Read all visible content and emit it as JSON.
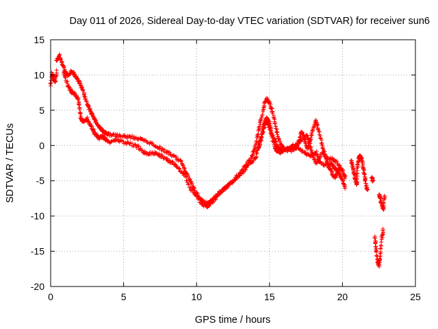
{
  "chart_data": {
    "type": "scatter",
    "title": "Day 011 of 2026, Sidereal Day-to-day VTEC variation (SDTVAR) for receiver sun6",
    "xlabel": "GPS time / hours",
    "ylabel": "SDTVAR / TECUs",
    "xlim": [
      0,
      25
    ],
    "ylim": [
      -20,
      15
    ],
    "xticks": [
      0,
      5,
      10,
      15,
      20,
      25
    ],
    "yticks": [
      -20,
      -15,
      -10,
      -5,
      0,
      5,
      10,
      15
    ],
    "grid": true,
    "marker": "+",
    "series": [
      {
        "name": "SDTVAR",
        "color": "#ff0000",
        "segments": [
          [
            [
              0.0,
              8.5
            ],
            [
              0.1,
              10.2
            ],
            [
              0.2,
              9.5
            ],
            [
              0.3,
              9.0
            ],
            [
              0.4,
              10.5
            ]
          ],
          [
            [
              0.4,
              12.0
            ],
            [
              0.6,
              12.8
            ],
            [
              0.8,
              11.5
            ],
            [
              1.0,
              10.5
            ],
            [
              1.2,
              10.0
            ],
            [
              1.4,
              10.5
            ],
            [
              1.6,
              10.2
            ],
            [
              1.8,
              9.5
            ],
            [
              2.0,
              8.8
            ],
            [
              2.2,
              8.0
            ],
            [
              2.4,
              6.5
            ],
            [
              2.6,
              5.5
            ],
            [
              2.8,
              4.5
            ],
            [
              3.0,
              3.8
            ],
            [
              3.2,
              3.0
            ],
            [
              3.4,
              2.5
            ],
            [
              3.6,
              2.0
            ],
            [
              3.8,
              1.7
            ],
            [
              4.0,
              1.6
            ],
            [
              4.5,
              1.4
            ],
            [
              5.0,
              1.3
            ],
            [
              5.5,
              1.2
            ],
            [
              6.0,
              1.0
            ],
            [
              6.5,
              0.6
            ],
            [
              7.0,
              0.2
            ],
            [
              7.5,
              -0.4
            ],
            [
              8.0,
              -1.0
            ],
            [
              8.5,
              -1.6
            ],
            [
              9.0,
              -2.5
            ],
            [
              9.3,
              -3.8
            ],
            [
              9.6,
              -5.2
            ],
            [
              9.9,
              -6.5
            ],
            [
              10.2,
              -7.5
            ],
            [
              10.5,
              -8.0
            ],
            [
              10.8,
              -8.2
            ],
            [
              11.1,
              -7.7
            ],
            [
              11.4,
              -7.0
            ],
            [
              11.8,
              -6.3
            ],
            [
              12.2,
              -5.6
            ],
            [
              12.6,
              -4.8
            ],
            [
              13.0,
              -3.8
            ],
            [
              13.4,
              -2.8
            ],
            [
              13.8,
              -1.5
            ],
            [
              14.0,
              -0.3
            ],
            [
              14.2,
              1.5
            ],
            [
              14.4,
              3.5
            ],
            [
              14.6,
              5.5
            ],
            [
              14.8,
              6.6
            ],
            [
              15.0,
              6.0
            ],
            [
              15.2,
              4.8
            ],
            [
              15.4,
              3.0
            ],
            [
              15.6,
              1.2
            ],
            [
              15.8,
              0.0
            ],
            [
              16.0,
              -0.5
            ],
            [
              16.4,
              -0.8
            ],
            [
              16.8,
              -0.5
            ],
            [
              17.0,
              0.5
            ],
            [
              17.2,
              2.0
            ],
            [
              17.4,
              1.0
            ],
            [
              17.6,
              -0.5
            ],
            [
              17.8,
              0.8
            ],
            [
              18.0,
              2.5
            ],
            [
              18.2,
              3.5
            ],
            [
              18.4,
              2.0
            ],
            [
              18.6,
              0.0
            ],
            [
              18.8,
              -1.5
            ],
            [
              19.0,
              -2.8
            ],
            [
              19.2,
              -3.5
            ],
            [
              19.4,
              -4.5
            ],
            [
              19.6,
              -4.2
            ],
            [
              19.8,
              -3.2
            ],
            [
              20.0,
              -3.6
            ],
            [
              20.2,
              -4.5
            ]
          ],
          [
            [
              0.9,
              10.5
            ],
            [
              1.1,
              9.0
            ],
            [
              1.3,
              8.0
            ],
            [
              1.5,
              7.5
            ],
            [
              1.7,
              7.2
            ],
            [
              1.9,
              6.5
            ],
            [
              2.0,
              5.0
            ],
            [
              2.1,
              3.5
            ],
            [
              2.3,
              3.5
            ],
            [
              2.5,
              3.8
            ],
            [
              2.7,
              3.0
            ],
            [
              2.9,
              2.2
            ],
            [
              3.1,
              1.5
            ],
            [
              3.3,
              1.0
            ],
            [
              3.5,
              1.3
            ],
            [
              3.7,
              1.0
            ],
            [
              4.0,
              0.5
            ],
            [
              4.5,
              0.8
            ],
            [
              5.0,
              0.5
            ],
            [
              5.5,
              0.2
            ],
            [
              6.0,
              -0.2
            ],
            [
              6.4,
              -1.0
            ],
            [
              6.8,
              -1.2
            ],
            [
              7.2,
              -1.0
            ],
            [
              7.6,
              -1.5
            ],
            [
              8.0,
              -2.0
            ],
            [
              8.4,
              -2.5
            ],
            [
              8.8,
              -3.3
            ],
            [
              9.2,
              -4.2
            ],
            [
              9.6,
              -6.2
            ],
            [
              10.0,
              -7.2
            ],
            [
              10.4,
              -8.4
            ],
            [
              10.8,
              -8.6
            ],
            [
              11.2,
              -7.8
            ],
            [
              11.6,
              -6.6
            ],
            [
              12.0,
              -6.0
            ],
            [
              12.4,
              -5.2
            ],
            [
              12.8,
              -4.5
            ],
            [
              13.2,
              -3.8
            ],
            [
              13.6,
              -2.5
            ],
            [
              14.0,
              -2.0
            ],
            [
              14.2,
              -0.5
            ],
            [
              14.4,
              1.0
            ],
            [
              14.6,
              3.0
            ],
            [
              14.8,
              4.0
            ],
            [
              15.0,
              3.2
            ],
            [
              15.2,
              1.5
            ],
            [
              15.4,
              0.5
            ],
            [
              15.6,
              -0.3
            ],
            [
              15.8,
              -0.8
            ],
            [
              16.2,
              -0.5
            ],
            [
              16.6,
              0.0
            ],
            [
              17.0,
              -0.3
            ],
            [
              17.4,
              -1.0
            ],
            [
              17.8,
              -1.5
            ],
            [
              18.2,
              -1.0
            ],
            [
              18.4,
              -2.2
            ],
            [
              18.8,
              -2.8
            ],
            [
              19.2,
              -2.5
            ],
            [
              19.4,
              -3.0
            ],
            [
              19.6,
              -3.5
            ],
            [
              19.8,
              -4.0
            ],
            [
              20.0,
              -5.0
            ],
            [
              20.2,
              -6.0
            ]
          ],
          [
            [
              14.2,
              -0.5
            ],
            [
              14.4,
              0.5
            ],
            [
              14.6,
              2.5
            ],
            [
              14.8,
              3.5
            ],
            [
              15.0,
              2.5
            ],
            [
              15.2,
              1.0
            ],
            [
              15.4,
              -0.5
            ],
            [
              15.6,
              -0.8
            ],
            [
              15.8,
              -1.0
            ],
            [
              16.0,
              -0.6
            ],
            [
              16.4,
              -0.4
            ],
            [
              16.8,
              0.0
            ],
            [
              17.2,
              0.8
            ],
            [
              17.6,
              1.5
            ],
            [
              17.8,
              0.0
            ],
            [
              18.0,
              -1.5
            ],
            [
              18.2,
              -2.5
            ],
            [
              18.6,
              -1.0
            ],
            [
              19.0,
              -1.8
            ],
            [
              19.4,
              -2.0
            ],
            [
              19.8,
              -2.8
            ]
          ],
          [
            [
              20.6,
              -2.0
            ],
            [
              20.7,
              -3.0
            ],
            [
              20.8,
              -4.0
            ],
            [
              20.9,
              -5.0
            ],
            [
              21.0,
              -5.5
            ],
            [
              21.0,
              -3.5
            ],
            [
              21.1,
              -2.0
            ],
            [
              21.2,
              -1.5
            ],
            [
              21.3,
              -1.8
            ],
            [
              21.4,
              -3.0
            ],
            [
              21.5,
              -4.0
            ],
            [
              21.6,
              -5.5
            ],
            [
              21.7,
              -6.5
            ]
          ],
          [
            [
              22.0,
              -4.5
            ],
            [
              22.1,
              -5.0
            ]
          ],
          [
            [
              22.5,
              -7.0
            ],
            [
              22.6,
              -7.5
            ],
            [
              22.7,
              -8.5
            ],
            [
              22.8,
              -9.0
            ],
            [
              22.9,
              -7.0
            ]
          ],
          [
            [
              22.2,
              -13.0
            ],
            [
              22.3,
              -14.5
            ],
            [
              22.4,
              -16.5
            ],
            [
              22.5,
              -17.0
            ],
            [
              22.6,
              -15.5
            ],
            [
              22.7,
              -13.0
            ],
            [
              22.8,
              -12.0
            ]
          ]
        ]
      }
    ]
  }
}
